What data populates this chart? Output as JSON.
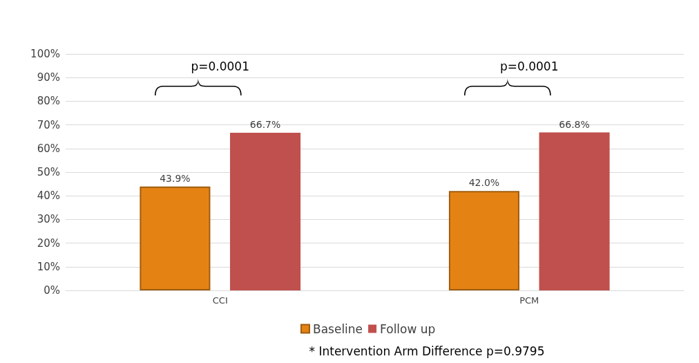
{
  "chart_data": {
    "type": "bar",
    "categories": [
      "CCI",
      "PCM"
    ],
    "series": [
      {
        "name": "Baseline",
        "color": "#e48314",
        "values": [
          43.9,
          42.0
        ],
        "value_labels": [
          "43.9%",
          "42.0%"
        ]
      },
      {
        "name": "Follow up",
        "color": "#c0504d",
        "values": [
          66.7,
          66.8
        ],
        "value_labels": [
          "66.7%",
          "66.8%"
        ]
      }
    ],
    "ylim": [
      0,
      100
    ],
    "yticks": [
      {
        "value": 0,
        "label": "0%"
      },
      {
        "value": 10,
        "label": "10%"
      },
      {
        "value": 20,
        "label": "20%"
      },
      {
        "value": 30,
        "label": "30%"
      },
      {
        "value": 40,
        "label": "40%"
      },
      {
        "value": 50,
        "label": "50%"
      },
      {
        "value": 60,
        "label": "60%"
      },
      {
        "value": 70,
        "label": "70%"
      },
      {
        "value": 80,
        "label": "80%"
      },
      {
        "value": 90,
        "label": "90%"
      },
      {
        "value": 100,
        "label": "100%"
      }
    ],
    "grid": "y",
    "legend": "bottom",
    "annotations": [
      "p=0.0001",
      "p=0.0001",
      "* Intervention Arm Difference p=0.9795"
    ]
  }
}
